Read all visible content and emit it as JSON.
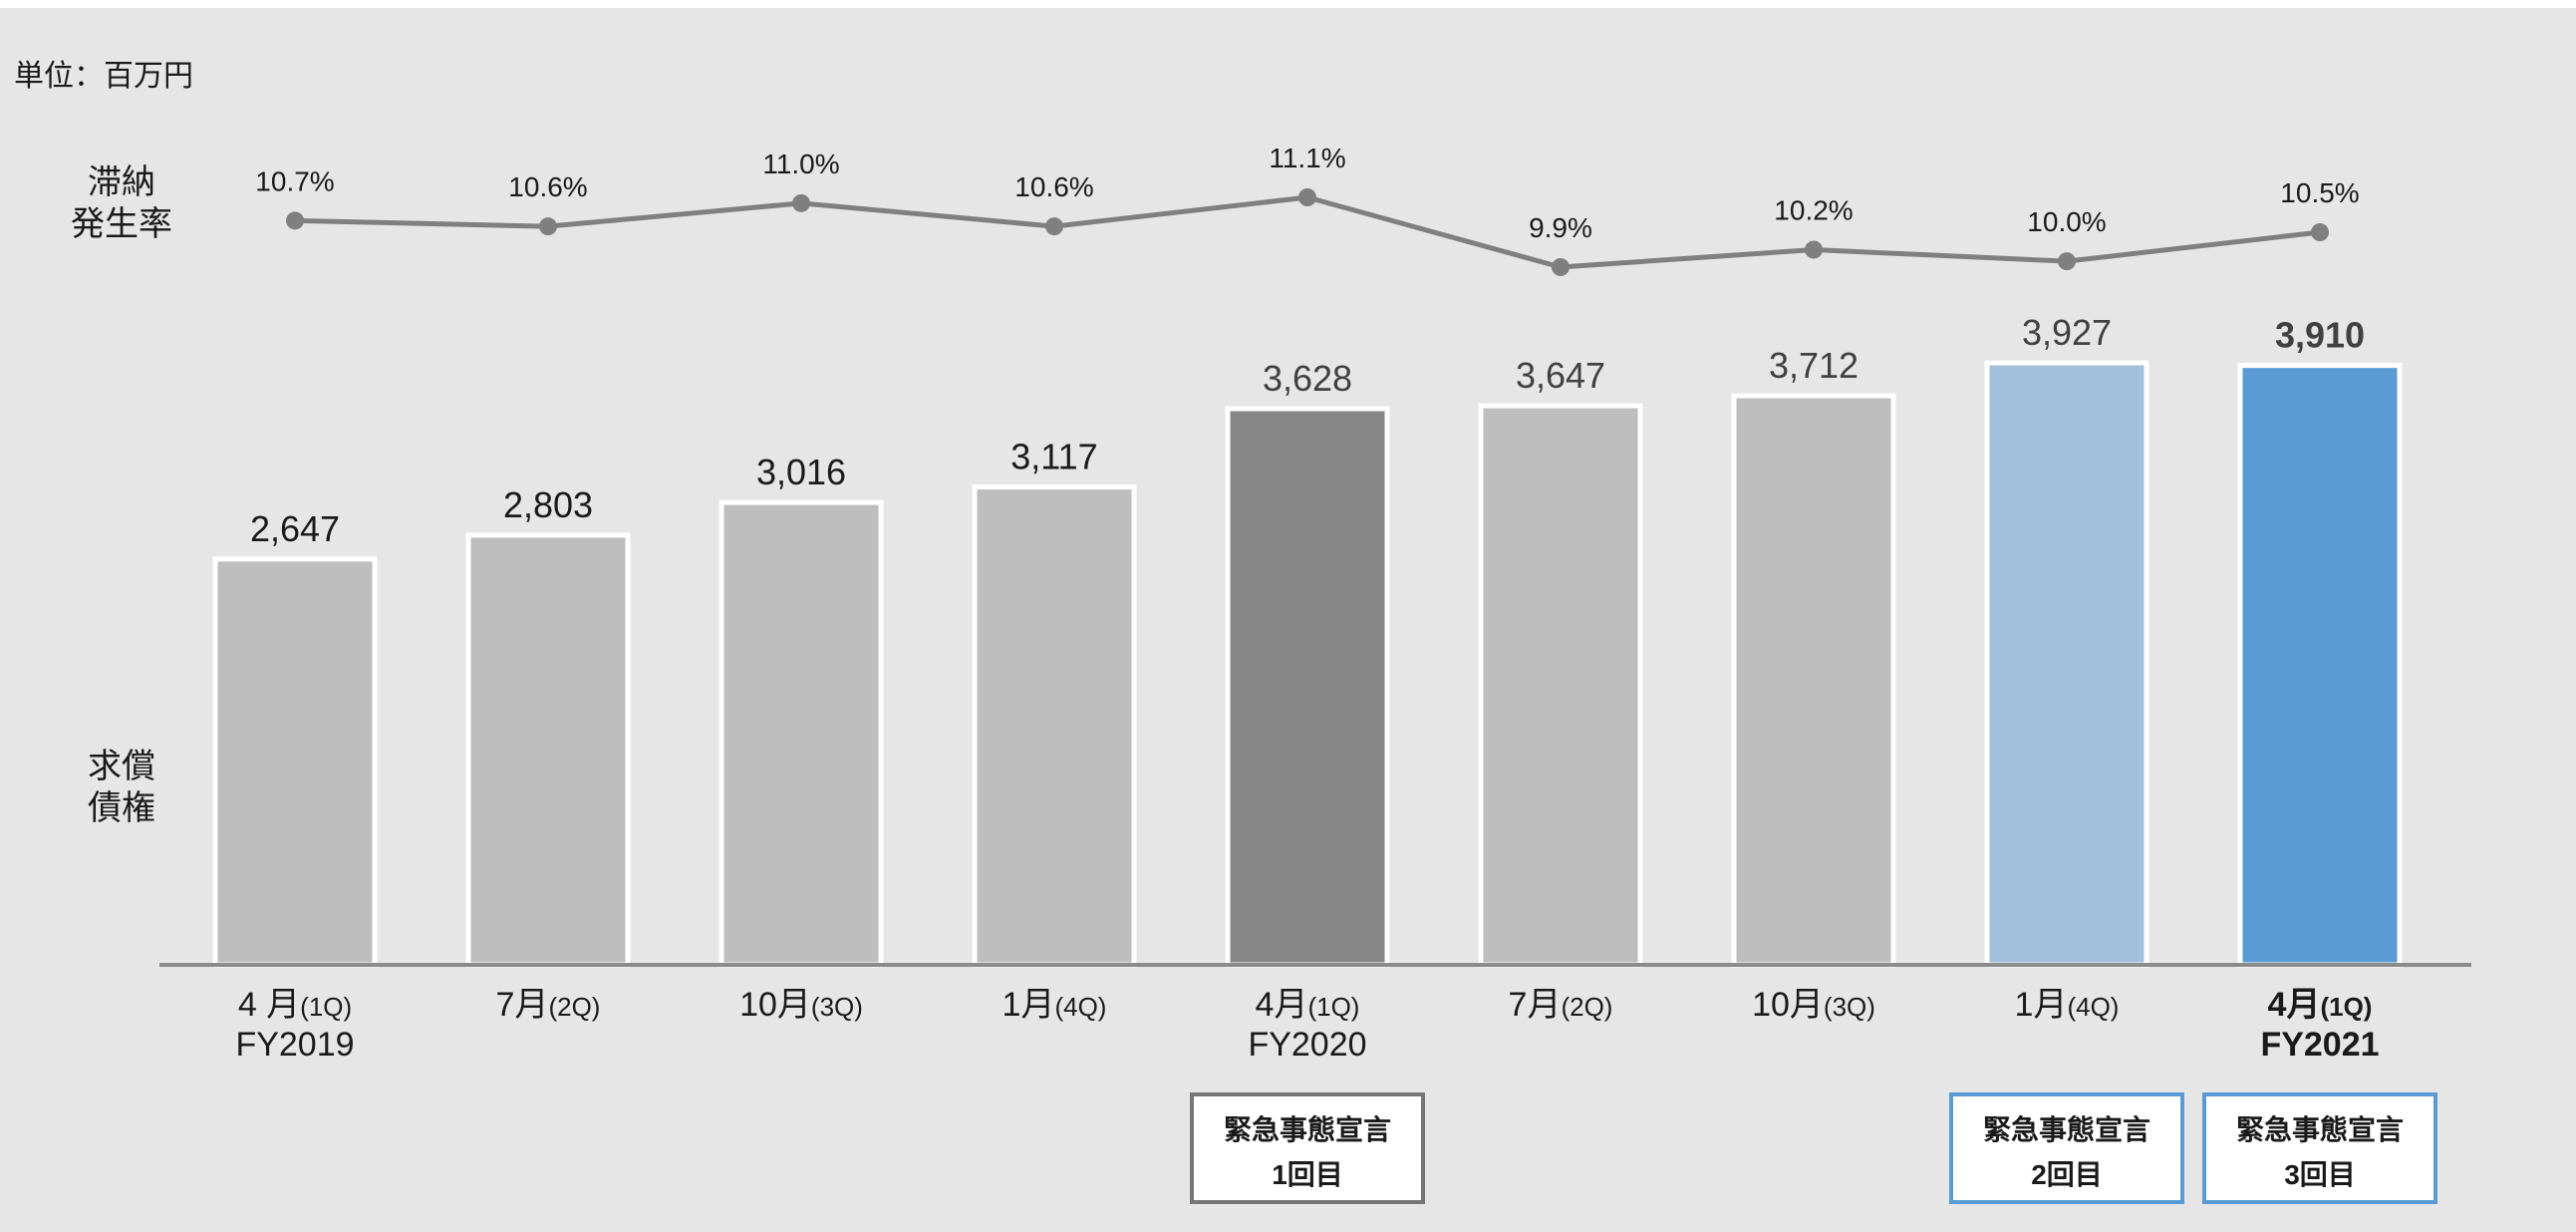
{
  "unit_label": "単位：百万円",
  "rate_axis_label": [
    "滞納",
    "発生率"
  ],
  "bar_axis_label": [
    "求償",
    "債権"
  ],
  "colors": {
    "background": "#e6e6e6",
    "bar_default": "#bebebe",
    "bar_dark": "#878787",
    "bar_light_blue": "#a3bfdc",
    "bar_blue": "#5b9bd5",
    "line": "#7f7f7f",
    "axis": "#8c8c8c",
    "label_dark": "#1a1a1a",
    "label_gray": "#404040",
    "box_gray_border": "#767676",
    "box_blue_border": "#5b9bd5"
  },
  "chart_data": {
    "type": "bar",
    "title": "",
    "categories": [
      "4 月(1Q)",
      "7月(2Q)",
      "10月(3Q)",
      "1月(4Q)",
      "4月(1Q)",
      "7月(2Q)",
      "10月(3Q)",
      "1月(4Q)",
      "4月(1Q)"
    ],
    "category_months": [
      "4 月",
      "7月",
      "10月",
      "1月",
      "4月",
      "7月",
      "10月",
      "1月",
      "4月"
    ],
    "category_quarters": [
      "(1Q)",
      "(2Q)",
      "(3Q)",
      "(4Q)",
      "(1Q)",
      "(2Q)",
      "(3Q)",
      "(4Q)",
      "(1Q)"
    ],
    "fiscal_year_labels": [
      "FY2019",
      "",
      "",
      "",
      "FY2020",
      "",
      "",
      "",
      "FY2021"
    ],
    "bold_categories": [
      false,
      false,
      false,
      false,
      false,
      false,
      false,
      false,
      true
    ],
    "series": [
      {
        "values": [
          2647,
          2803,
          3016,
          3117,
          3628,
          3647,
          3712,
          3927,
          3910
        ],
        "labels": [
          "2,647",
          "2,803",
          "3,016",
          "3,117",
          "3,628",
          "3,647",
          "3,712",
          "3,927",
          "3,910"
        ],
        "bar_colors": [
          "bar_default",
          "bar_default",
          "bar_default",
          "bar_default",
          "bar_dark",
          "bar_default",
          "bar_default",
          "bar_light_blue",
          "bar_blue"
        ],
        "label_colors": [
          "label_dark",
          "label_dark",
          "label_dark",
          "label_dark",
          "label_gray",
          "label_gray",
          "label_gray",
          "label_gray",
          "label_gray"
        ],
        "label_bold": [
          false,
          false,
          false,
          false,
          false,
          false,
          false,
          false,
          true
        ]
      },
      {
        "type": "line",
        "values": [
          10.7,
          10.6,
          11.0,
          10.6,
          11.1,
          9.9,
          10.2,
          10.0,
          10.5
        ],
        "labels": [
          "10.7%",
          "10.6%",
          "11.0%",
          "10.6%",
          "11.1%",
          "9.9%",
          "10.2%",
          "10.0%",
          "10.5%"
        ]
      }
    ],
    "ylim": [
      0,
      4200
    ],
    "rate_ylim": [
      9.5,
      11.5
    ],
    "xlabel": "",
    "ylabel": "",
    "grid": false,
    "legend": "none"
  },
  "event_boxes": [
    {
      "category_index": 4,
      "line1": "緊急事態宣言",
      "line2": "1回目",
      "style": "gray"
    },
    {
      "category_index": 7,
      "line1": "緊急事態宣言",
      "line2": "2回目",
      "style": "blue"
    },
    {
      "category_index": 8,
      "line1": "緊急事態宣言",
      "line2": "3回目",
      "style": "blue"
    }
  ]
}
